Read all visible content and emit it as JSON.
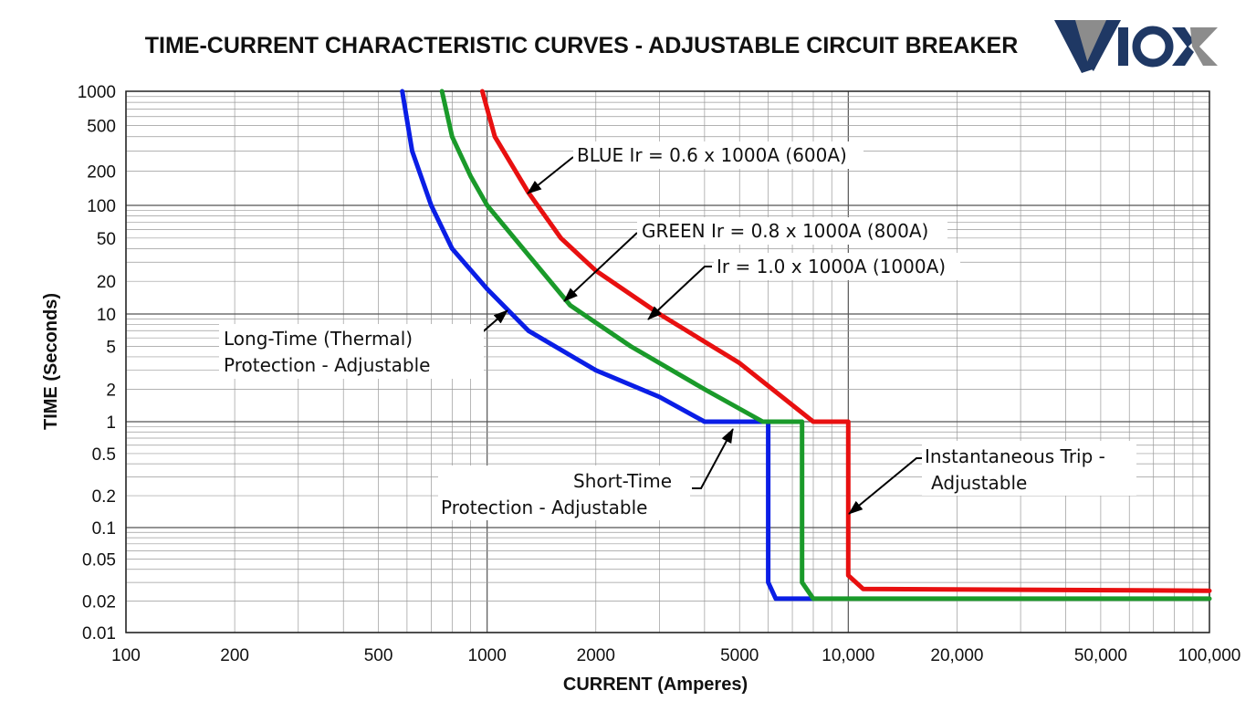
{
  "chart_data": {
    "type": "line",
    "title": "TIME-CURRENT CHARACTERISTIC CURVES - ADJUSTABLE CIRCUIT BREAKER",
    "xlabel": "CURRENT (Amperes)",
    "ylabel": "TIME (Seconds)",
    "xscale": "log",
    "yscale": "log",
    "xlim": [
      100,
      100000
    ],
    "ylim": [
      0.01,
      1000
    ],
    "grid": true,
    "x_ticks": [
      {
        "value": 100,
        "label": "100"
      },
      {
        "value": 200,
        "label": "200"
      },
      {
        "value": 500,
        "label": "500"
      },
      {
        "value": 1000,
        "label": "1000"
      },
      {
        "value": 2000,
        "label": "2000"
      },
      {
        "value": 5000,
        "label": "5000"
      },
      {
        "value": 10000,
        "label": "10,000"
      },
      {
        "value": 20000,
        "label": "20,000"
      },
      {
        "value": 50000,
        "label": "50,000"
      },
      {
        "value": 100000,
        "label": "100,000"
      }
    ],
    "y_ticks": [
      {
        "value": 1000,
        "label": "1000"
      },
      {
        "value": 500,
        "label": "500"
      },
      {
        "value": 200,
        "label": "200"
      },
      {
        "value": 100,
        "label": "100"
      },
      {
        "value": 50,
        "label": "50"
      },
      {
        "value": 20,
        "label": "20"
      },
      {
        "value": 10,
        "label": "10"
      },
      {
        "value": 5,
        "label": "5"
      },
      {
        "value": 2,
        "label": "2"
      },
      {
        "value": 1,
        "label": "1"
      },
      {
        "value": 0.5,
        "label": "0.5"
      },
      {
        "value": 0.2,
        "label": "0.2"
      },
      {
        "value": 0.1,
        "label": "0.1"
      },
      {
        "value": 0.05,
        "label": "0.05"
      },
      {
        "value": 0.02,
        "label": "0.02"
      },
      {
        "value": 0.01,
        "label": "0.01"
      }
    ],
    "series": [
      {
        "color": "#0a1ee6",
        "points": [
          [
            582,
            1000
          ],
          [
            620,
            300
          ],
          [
            700,
            100
          ],
          [
            800,
            40
          ],
          [
            1000,
            17
          ],
          [
            1300,
            7
          ],
          [
            2000,
            3
          ],
          [
            3000,
            1.7
          ],
          [
            4000,
            1
          ],
          [
            6000,
            1
          ],
          [
            6000,
            0.03
          ],
          [
            6300,
            0.021
          ],
          [
            8000,
            0.021
          ]
        ]
      },
      {
        "color": "#1a9a2a",
        "points": [
          [
            750,
            1000
          ],
          [
            800,
            400
          ],
          [
            900,
            180
          ],
          [
            1000,
            100
          ],
          [
            1300,
            35
          ],
          [
            1700,
            12
          ],
          [
            2500,
            5
          ],
          [
            4000,
            2
          ],
          [
            5800,
            1
          ],
          [
            7450,
            1
          ],
          [
            7450,
            0.03
          ],
          [
            8000,
            0.021
          ],
          [
            100000,
            0.021
          ]
        ]
      },
      {
        "color": "#e81010",
        "points": [
          [
            970,
            1000
          ],
          [
            1050,
            400
          ],
          [
            1300,
            130
          ],
          [
            1600,
            50
          ],
          [
            2000,
            25
          ],
          [
            3000,
            10
          ],
          [
            5000,
            3.5
          ],
          [
            8000,
            1
          ],
          [
            10000,
            1
          ],
          [
            10000,
            0.035
          ],
          [
            11000,
            0.026
          ],
          [
            100000,
            0.025
          ]
        ]
      }
    ],
    "annotations": {
      "blue": "BLUE Ir = 0.6 x 1000A (600A)",
      "green": "GREEN Ir = 0.8 x 1000A (800A)",
      "red": "Ir = 1.0 x 1000A (1000A)",
      "long_time_1": "Long-Time (Thermal)",
      "long_time_2": "Protection - Adjustable",
      "short_time_1": "Short-Time",
      "short_time_2": "Protection - Adjustable",
      "inst_1": "Instantaneous Trip -",
      "inst_2": "Adjustable"
    }
  },
  "logo": {
    "text": "VIOX",
    "colors": {
      "navy": "#1f3864",
      "gray": "#8c8c8c"
    }
  }
}
